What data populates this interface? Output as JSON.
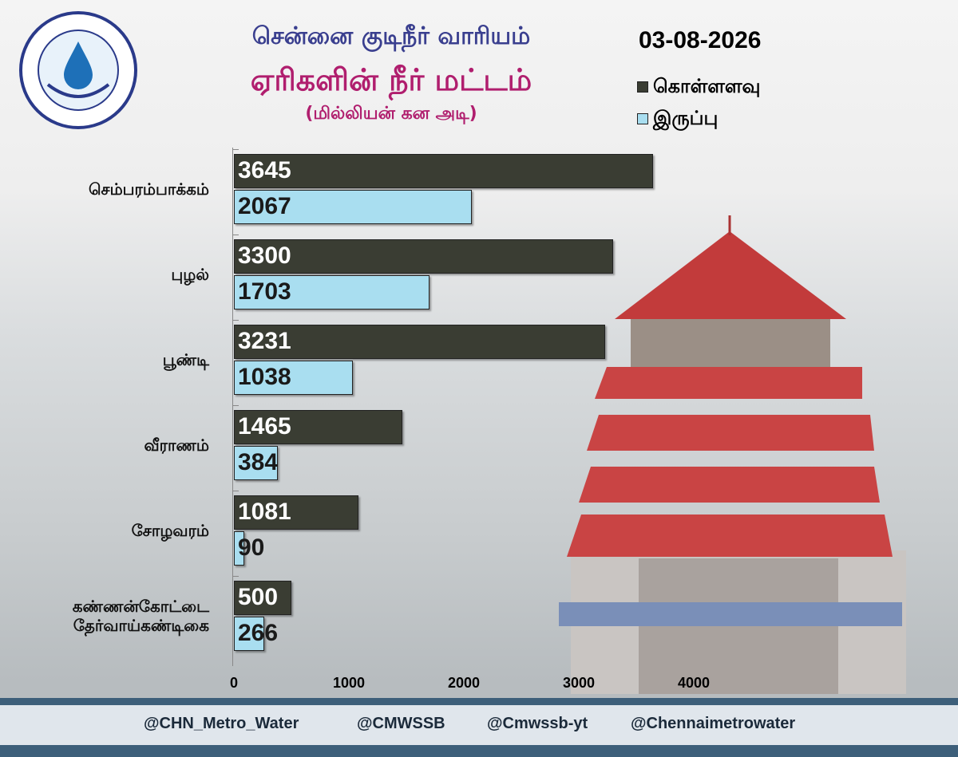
{
  "header": {
    "organization": "சென்னை குடிநீர் வாரியம்",
    "date": "03-08-2026"
  },
  "chart_data": {
    "type": "bar",
    "orientation": "horizontal",
    "title": "ஏரிகளின் நீர் மட்டம்",
    "subtitle": "(மில்லியன் கன அடி)",
    "categories": [
      "செம்பரம்பாக்கம்",
      "புழல்",
      "பூண்டி",
      "வீராணம்",
      "சோழவரம்",
      "கண்ணன்கோட்டை\nதேர்வாய்கண்டிகை"
    ],
    "series": [
      {
        "name": "கொள்ளளவு",
        "color": "#3a3d33",
        "values": [
          3645,
          3300,
          3231,
          1465,
          1081,
          500
        ]
      },
      {
        "name": "இருப்பு",
        "color": "#a9def0",
        "values": [
          2067,
          1703,
          1038,
          384,
          90,
          266
        ]
      }
    ],
    "xlim": [
      0,
      4000
    ],
    "xticks": [
      0,
      1000,
      2000,
      3000,
      4000
    ]
  },
  "footer": {
    "handles": [
      "@CHN_Metro_Water",
      "@CMWSSB",
      "@Cmwssb-yt",
      "@Chennaimetrowater"
    ]
  }
}
